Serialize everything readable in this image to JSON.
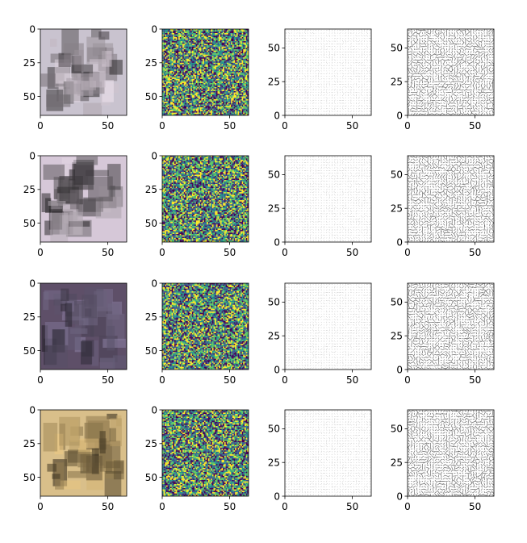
{
  "chart_data": {
    "type": "image-grid",
    "rows": 4,
    "columns": 4,
    "column_content": [
      "rgb-photo",
      "noise-heatmap",
      "vector-field",
      "vector-field"
    ],
    "colormap": "viridis",
    "xlim": [
      0,
      64
    ],
    "ylim": [
      0,
      64
    ],
    "row_photo_tints": [
      "#c9c3cf",
      "#d6c8d8",
      "#5e4f68",
      "#d9bf8a"
    ],
    "panels": [
      {
        "row": 1,
        "col": 1,
        "kind": "image",
        "yaxis": "inverted",
        "xticks": [
          "0",
          "50"
        ],
        "yticks": [
          "0",
          "25",
          "50"
        ]
      },
      {
        "row": 1,
        "col": 2,
        "kind": "heatmap",
        "yaxis": "inverted",
        "xticks": [
          "0",
          "50"
        ],
        "yticks": [
          "0",
          "25",
          "50"
        ]
      },
      {
        "row": 1,
        "col": 3,
        "kind": "quiver",
        "yaxis": "normal",
        "xticks": [
          "0",
          "50"
        ],
        "yticks": [
          "0",
          "25",
          "50"
        ]
      },
      {
        "row": 1,
        "col": 4,
        "kind": "quiver",
        "yaxis": "normal",
        "xticks": [
          "0",
          "50"
        ],
        "yticks": [
          "0",
          "25",
          "50"
        ]
      },
      {
        "row": 2,
        "col": 1,
        "kind": "image",
        "yaxis": "inverted",
        "xticks": [
          "0",
          "50"
        ],
        "yticks": [
          "0",
          "25",
          "50"
        ]
      },
      {
        "row": 2,
        "col": 2,
        "kind": "heatmap",
        "yaxis": "inverted",
        "xticks": [
          "0",
          "50"
        ],
        "yticks": [
          "0",
          "25",
          "50"
        ]
      },
      {
        "row": 2,
        "col": 3,
        "kind": "quiver",
        "yaxis": "normal",
        "xticks": [
          "0",
          "50"
        ],
        "yticks": [
          "0",
          "25",
          "50"
        ]
      },
      {
        "row": 2,
        "col": 4,
        "kind": "quiver",
        "yaxis": "normal",
        "xticks": [
          "0",
          "50"
        ],
        "yticks": [
          "0",
          "25",
          "50"
        ]
      },
      {
        "row": 3,
        "col": 1,
        "kind": "image",
        "yaxis": "inverted",
        "xticks": [
          "0",
          "50"
        ],
        "yticks": [
          "0",
          "25",
          "50"
        ]
      },
      {
        "row": 3,
        "col": 2,
        "kind": "heatmap",
        "yaxis": "inverted",
        "xticks": [
          "0",
          "50"
        ],
        "yticks": [
          "0",
          "25",
          "50"
        ]
      },
      {
        "row": 3,
        "col": 3,
        "kind": "quiver",
        "yaxis": "normal",
        "xticks": [
          "0",
          "50"
        ],
        "yticks": [
          "0",
          "25",
          "50"
        ]
      },
      {
        "row": 3,
        "col": 4,
        "kind": "quiver",
        "yaxis": "normal",
        "xticks": [
          "0",
          "50"
        ],
        "yticks": [
          "0",
          "25",
          "50"
        ]
      },
      {
        "row": 4,
        "col": 1,
        "kind": "image",
        "yaxis": "inverted",
        "xticks": [
          "0",
          "50"
        ],
        "yticks": [
          "0",
          "25",
          "50"
        ]
      },
      {
        "row": 4,
        "col": 2,
        "kind": "heatmap",
        "yaxis": "inverted",
        "xticks": [
          "0",
          "50"
        ],
        "yticks": [
          "0",
          "25",
          "50"
        ]
      },
      {
        "row": 4,
        "col": 3,
        "kind": "quiver",
        "yaxis": "normal",
        "xticks": [
          "0",
          "50"
        ],
        "yticks": [
          "0",
          "25",
          "50"
        ]
      },
      {
        "row": 4,
        "col": 4,
        "kind": "quiver",
        "yaxis": "normal",
        "xticks": [
          "0",
          "50"
        ],
        "yticks": [
          "0",
          "25",
          "50"
        ]
      }
    ]
  }
}
